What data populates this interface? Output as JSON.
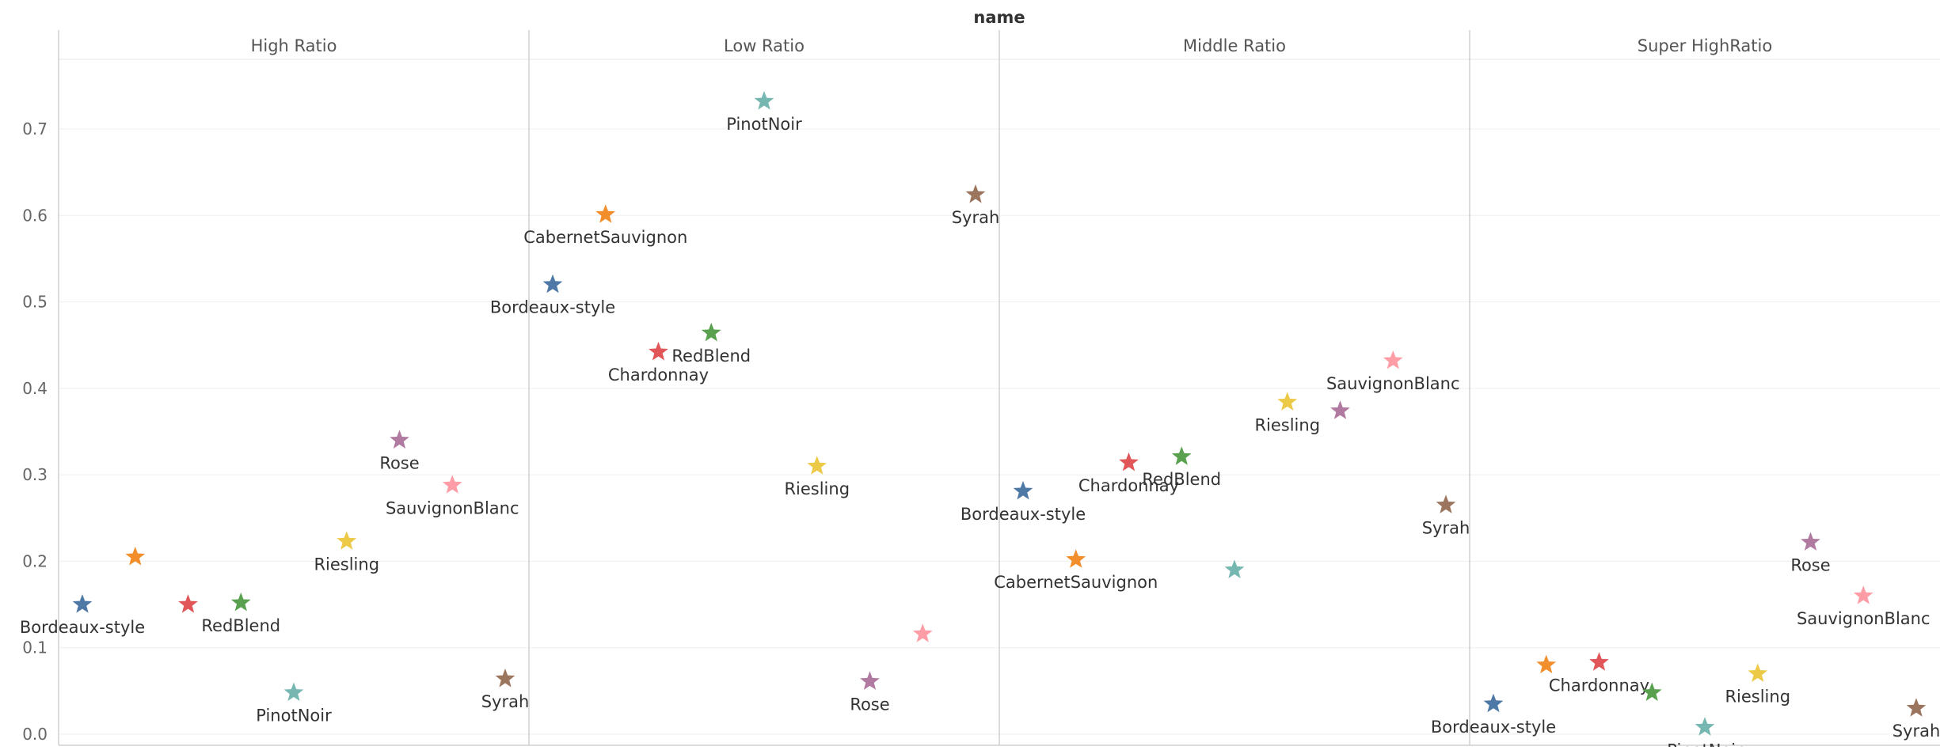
{
  "chart_data": {
    "type": "scatter",
    "title": "name",
    "ylim": [
      0,
      0.78
    ],
    "yticks": [
      0.0,
      0.1,
      0.2,
      0.3,
      0.4,
      0.5,
      0.6,
      0.7
    ],
    "marker": "star",
    "grid": true,
    "legend": "none",
    "categories": [
      "Bordeaux-style",
      "CabernetSauvignon",
      "Chardonnay",
      "RedBlend",
      "PinotNoir",
      "Riesling",
      "Rose",
      "SauvignonBlanc",
      "Syrah"
    ],
    "colors": {
      "Bordeaux-style": "#4e79a7",
      "CabernetSauvignon": "#f28e2b",
      "Chardonnay": "#e15759",
      "RedBlend": "#59a14f",
      "PinotNoir": "#76b7b2",
      "Riesling": "#edc948",
      "Rose": "#b07aa1",
      "SauvignonBlanc": "#ff9da7",
      "Syrah": "#9c755f"
    },
    "panels": [
      {
        "name": "High Ratio",
        "points": [
          {
            "label": "Bordeaux-style",
            "y": 0.15,
            "show_label": true
          },
          {
            "label": "CabernetSauvignon",
            "y": 0.205,
            "show_label": false
          },
          {
            "label": "Chardonnay",
            "y": 0.15,
            "show_label": false
          },
          {
            "label": "RedBlend",
            "y": 0.152,
            "show_label": true
          },
          {
            "label": "PinotNoir",
            "y": 0.048,
            "show_label": true
          },
          {
            "label": "Riesling",
            "y": 0.223,
            "show_label": true
          },
          {
            "label": "Rose",
            "y": 0.34,
            "show_label": true
          },
          {
            "label": "SauvignonBlanc",
            "y": 0.288,
            "show_label": true
          },
          {
            "label": "Syrah",
            "y": 0.064,
            "show_label": true
          }
        ]
      },
      {
        "name": "Low Ratio",
        "points": [
          {
            "label": "Bordeaux-style",
            "y": 0.52,
            "show_label": true
          },
          {
            "label": "CabernetSauvignon",
            "y": 0.601,
            "show_label": true
          },
          {
            "label": "Chardonnay",
            "y": 0.442,
            "show_label": true
          },
          {
            "label": "RedBlend",
            "y": 0.464,
            "show_label": true
          },
          {
            "label": "PinotNoir",
            "y": 0.732,
            "show_label": true
          },
          {
            "label": "Riesling",
            "y": 0.31,
            "show_label": true
          },
          {
            "label": "Rose",
            "y": 0.061,
            "show_label": true
          },
          {
            "label": "SauvignonBlanc",
            "y": 0.116,
            "show_label": false
          },
          {
            "label": "Syrah",
            "y": 0.624,
            "show_label": true
          }
        ]
      },
      {
        "name": "Middle Ratio",
        "points": [
          {
            "label": "Bordeaux-style",
            "y": 0.281,
            "show_label": true
          },
          {
            "label": "CabernetSauvignon",
            "y": 0.202,
            "show_label": true
          },
          {
            "label": "Chardonnay",
            "y": 0.314,
            "show_label": true
          },
          {
            "label": "RedBlend",
            "y": 0.321,
            "show_label": true
          },
          {
            "label": "PinotNoir",
            "y": 0.19,
            "show_label": false
          },
          {
            "label": "Riesling",
            "y": 0.384,
            "show_label": true
          },
          {
            "label": "Rose",
            "y": 0.374,
            "show_label": false
          },
          {
            "label": "SauvignonBlanc",
            "y": 0.432,
            "show_label": true
          },
          {
            "label": "Syrah",
            "y": 0.265,
            "show_label": true
          }
        ]
      },
      {
        "name": "Super HighRatio",
        "points": [
          {
            "label": "Bordeaux-style",
            "y": 0.035,
            "show_label": true
          },
          {
            "label": "CabernetSauvignon",
            "y": 0.08,
            "show_label": false
          },
          {
            "label": "Chardonnay",
            "y": 0.083,
            "show_label": true
          },
          {
            "label": "RedBlend",
            "y": 0.048,
            "show_label": false
          },
          {
            "label": "PinotNoir",
            "y": 0.008,
            "show_label": true
          },
          {
            "label": "Riesling",
            "y": 0.07,
            "show_label": true
          },
          {
            "label": "Rose",
            "y": 0.222,
            "show_label": true
          },
          {
            "label": "SauvignonBlanc",
            "y": 0.16,
            "show_label": true
          },
          {
            "label": "Syrah",
            "y": 0.03,
            "show_label": true
          }
        ]
      }
    ]
  }
}
